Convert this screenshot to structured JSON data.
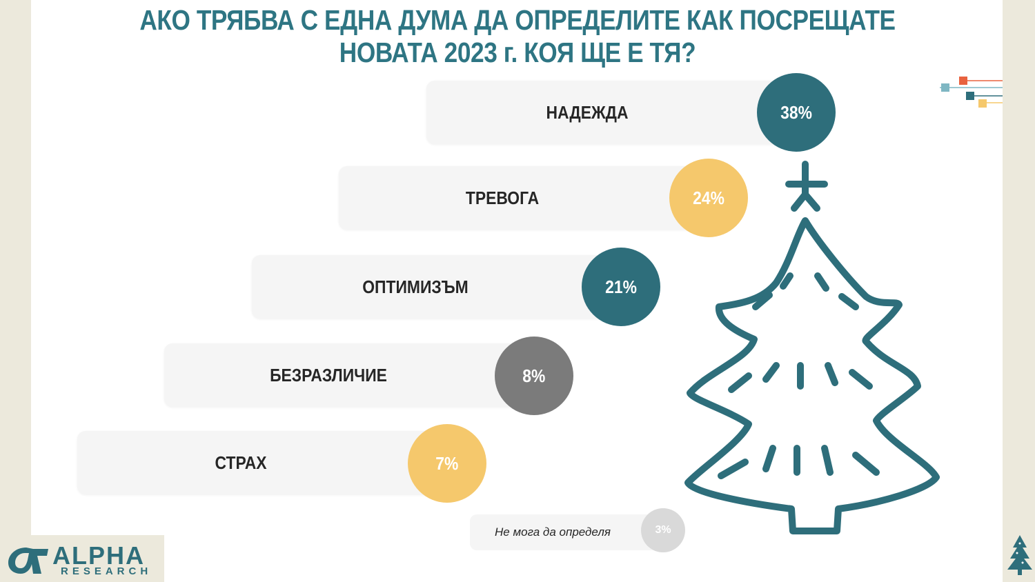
{
  "title_line1": "АКО ТРЯБВА С ЕДНА ДУМА ДА ОПРЕДЕЛИТЕ КАК ПОСРЕЩАТЕ",
  "title_line2": "НОВАТА 2023 г. КОЯ ЩЕ Е ТЯ?",
  "colors": {
    "teal": "#2e6e7b",
    "yellow": "#f5c86c",
    "gray": "#7b7b7b",
    "light_gray": "#d9d9d9",
    "title": "#2e7583"
  },
  "chart_data": {
    "type": "bar",
    "categories": [
      "НАДЕЖДА",
      "ТРЕВОГА",
      "ОПТИМИЗЪМ",
      "БЕЗРАЗЛИЧИЕ",
      "СТРАХ",
      "Не мога да определя"
    ],
    "values": [
      38,
      24,
      21,
      8,
      7,
      3
    ],
    "value_labels": [
      "38%",
      "24%",
      "21%",
      "8%",
      "7%",
      "3%"
    ],
    "bubble_colors": [
      "#2e6e7b",
      "#f5c86c",
      "#2e6e7b",
      "#7b7b7b",
      "#f5c86c",
      "#d9d9d9"
    ]
  },
  "logo": {
    "name": "ALPHA",
    "sub": "RESEARCH"
  }
}
